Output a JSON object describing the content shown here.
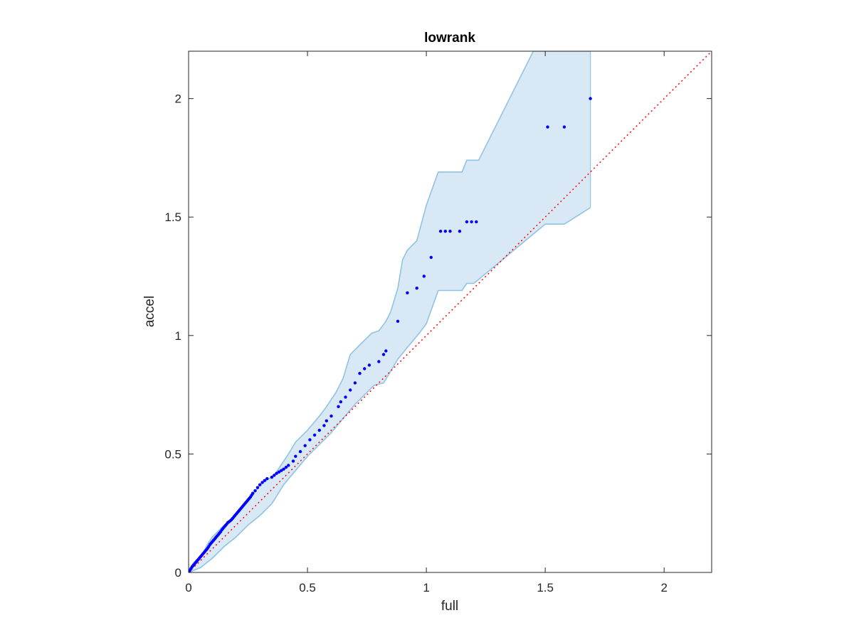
{
  "chart_data": {
    "type": "scatter",
    "title": "lowrank",
    "xlabel": "full",
    "ylabel": "accel",
    "xlim": [
      0,
      2.2
    ],
    "ylim": [
      0,
      2.2
    ],
    "xticks": [
      0,
      0.5,
      1,
      1.5,
      2
    ],
    "yticks": [
      0,
      0.5,
      1,
      1.5,
      2
    ],
    "xtick_labels": [
      "0",
      "0.5",
      "1",
      "1.5",
      "2"
    ],
    "ytick_labels": [
      "0",
      "0.5",
      "1",
      "1.5",
      "2"
    ],
    "grid": false,
    "colors": {
      "points": "#0000ff",
      "band_fill": "#d8e9f5",
      "band_edge": "#8fc3e4",
      "reference_line": "#ff0000",
      "axes": "#262626"
    },
    "reference_line": {
      "style": "dotted",
      "x": [
        0,
        2.2
      ],
      "y": [
        0,
        2.2
      ]
    },
    "confidence_band": {
      "upper": [
        [
          0,
          0.01
        ],
        [
          0.02,
          0.04
        ],
        [
          0.04,
          0.06
        ],
        [
          0.06,
          0.08
        ],
        [
          0.08,
          0.12
        ],
        [
          0.1,
          0.15
        ],
        [
          0.12,
          0.17
        ],
        [
          0.15,
          0.2
        ],
        [
          0.18,
          0.22
        ],
        [
          0.2,
          0.25
        ],
        [
          0.22,
          0.27
        ],
        [
          0.25,
          0.3
        ],
        [
          0.28,
          0.34
        ],
        [
          0.3,
          0.37
        ],
        [
          0.33,
          0.39
        ],
        [
          0.36,
          0.41
        ],
        [
          0.38,
          0.44
        ],
        [
          0.42,
          0.5
        ],
        [
          0.45,
          0.55
        ],
        [
          0.5,
          0.6
        ],
        [
          0.55,
          0.66
        ],
        [
          0.58,
          0.7
        ],
        [
          0.62,
          0.76
        ],
        [
          0.65,
          0.82
        ],
        [
          0.68,
          0.92
        ],
        [
          0.72,
          0.96
        ],
        [
          0.75,
          0.99
        ],
        [
          0.77,
          1.01
        ],
        [
          0.8,
          1.02
        ],
        [
          0.83,
          1.06
        ],
        [
          0.85,
          1.1
        ],
        [
          0.88,
          1.2
        ],
        [
          0.9,
          1.32
        ],
        [
          0.92,
          1.36
        ],
        [
          0.96,
          1.4
        ],
        [
          1.0,
          1.55
        ],
        [
          1.05,
          1.69
        ],
        [
          1.15,
          1.69
        ],
        [
          1.17,
          1.74
        ],
        [
          1.22,
          1.74
        ],
        [
          1.45,
          2.2
        ],
        [
          1.69,
          2.2
        ]
      ],
      "lower": [
        [
          0,
          0
        ],
        [
          0.05,
          0.02
        ],
        [
          0.1,
          0.06
        ],
        [
          0.15,
          0.11
        ],
        [
          0.2,
          0.15
        ],
        [
          0.25,
          0.2
        ],
        [
          0.3,
          0.24
        ],
        [
          0.35,
          0.29
        ],
        [
          0.4,
          0.37
        ],
        [
          0.45,
          0.43
        ],
        [
          0.5,
          0.49
        ],
        [
          0.55,
          0.54
        ],
        [
          0.6,
          0.59
        ],
        [
          0.65,
          0.65
        ],
        [
          0.7,
          0.71
        ],
        [
          0.75,
          0.76
        ],
        [
          0.78,
          0.79
        ],
        [
          0.82,
          0.8
        ],
        [
          0.85,
          0.85
        ],
        [
          0.88,
          0.9
        ],
        [
          0.92,
          0.95
        ],
        [
          0.97,
          1.01
        ],
        [
          1.0,
          1.05
        ],
        [
          1.05,
          1.19
        ],
        [
          1.15,
          1.19
        ],
        [
          1.17,
          1.22
        ],
        [
          1.2,
          1.22
        ],
        [
          1.5,
          1.47
        ],
        [
          1.58,
          1.47
        ],
        [
          1.69,
          1.54
        ]
      ]
    },
    "points": {
      "x": [
        0.0,
        0.005,
        0.01,
        0.015,
        0.02,
        0.025,
        0.03,
        0.035,
        0.04,
        0.045,
        0.05,
        0.055,
        0.06,
        0.065,
        0.07,
        0.075,
        0.08,
        0.085,
        0.09,
        0.095,
        0.1,
        0.105,
        0.11,
        0.115,
        0.12,
        0.125,
        0.13,
        0.135,
        0.14,
        0.145,
        0.15,
        0.155,
        0.16,
        0.165,
        0.17,
        0.175,
        0.18,
        0.185,
        0.19,
        0.195,
        0.2,
        0.205,
        0.21,
        0.215,
        0.22,
        0.225,
        0.23,
        0.235,
        0.24,
        0.245,
        0.25,
        0.255,
        0.26,
        0.265,
        0.27,
        0.28,
        0.29,
        0.3,
        0.31,
        0.32,
        0.33,
        0.35,
        0.36,
        0.37,
        0.38,
        0.39,
        0.4,
        0.41,
        0.42,
        0.44,
        0.45,
        0.47,
        0.49,
        0.51,
        0.53,
        0.55,
        0.57,
        0.58,
        0.6,
        0.63,
        0.64,
        0.66,
        0.68,
        0.7,
        0.72,
        0.74,
        0.76,
        0.8,
        0.82,
        0.83,
        0.88,
        0.92,
        0.96,
        0.99,
        1.02,
        1.06,
        1.08,
        1.1,
        1.14,
        1.17,
        1.19,
        1.21,
        1.51,
        1.58,
        1.69
      ],
      "y": [
        0.0,
        0.008,
        0.016,
        0.024,
        0.03,
        0.036,
        0.042,
        0.048,
        0.054,
        0.06,
        0.066,
        0.072,
        0.078,
        0.084,
        0.09,
        0.096,
        0.102,
        0.11,
        0.118,
        0.124,
        0.13,
        0.136,
        0.142,
        0.148,
        0.154,
        0.16,
        0.166,
        0.172,
        0.18,
        0.186,
        0.192,
        0.198,
        0.204,
        0.21,
        0.214,
        0.218,
        0.222,
        0.228,
        0.234,
        0.24,
        0.246,
        0.252,
        0.258,
        0.264,
        0.27,
        0.276,
        0.282,
        0.288,
        0.294,
        0.3,
        0.306,
        0.312,
        0.318,
        0.326,
        0.334,
        0.345,
        0.358,
        0.37,
        0.38,
        0.388,
        0.396,
        0.402,
        0.41,
        0.418,
        0.424,
        0.43,
        0.436,
        0.444,
        0.452,
        0.47,
        0.49,
        0.51,
        0.535,
        0.56,
        0.58,
        0.6,
        0.62,
        0.64,
        0.66,
        0.7,
        0.72,
        0.74,
        0.77,
        0.8,
        0.84,
        0.86,
        0.875,
        0.89,
        0.92,
        0.935,
        1.06,
        1.18,
        1.2,
        1.25,
        1.33,
        1.44,
        1.44,
        1.44,
        1.44,
        1.48,
        1.48,
        1.48,
        1.88,
        1.88,
        2.0
      ]
    }
  }
}
